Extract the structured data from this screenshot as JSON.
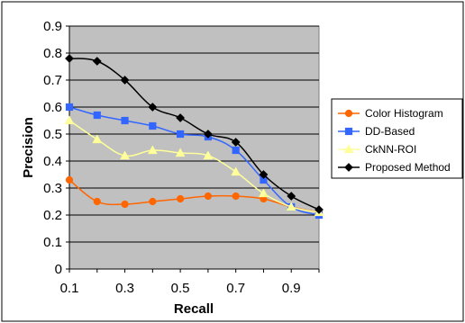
{
  "chart_data": {
    "type": "line",
    "title": "",
    "xlabel": "Recall",
    "ylabel": "Precision",
    "xlim": [
      0.1,
      1.0
    ],
    "ylim": [
      0,
      0.9
    ],
    "x_ticks": [
      "0.1",
      "0.3",
      "0.5",
      "0.7",
      "0.9"
    ],
    "y_ticks": [
      "0",
      "0.1",
      "0.2",
      "0.3",
      "0.4",
      "0.5",
      "0.6",
      "0.7",
      "0.8",
      "0.9"
    ],
    "grid": true,
    "plot_background": "#c0c0c0",
    "legend_position": "right",
    "x": [
      0.1,
      0.2,
      0.3,
      0.4,
      0.5,
      0.6,
      0.7,
      0.8,
      0.9,
      1.0
    ],
    "series": [
      {
        "name": "Color Histogram",
        "color": "#ff6600",
        "marker": "circle",
        "values": [
          0.33,
          0.25,
          0.24,
          0.25,
          0.26,
          0.27,
          0.27,
          0.26,
          0.23,
          0.21
        ]
      },
      {
        "name": "DD-Based",
        "color": "#3366ff",
        "marker": "square",
        "values": [
          0.6,
          0.57,
          0.55,
          0.53,
          0.5,
          0.49,
          0.44,
          0.33,
          0.23,
          0.2
        ]
      },
      {
        "name": "CkNN-ROI",
        "color": "#ffff99",
        "marker": "triangle",
        "values": [
          0.55,
          0.48,
          0.42,
          0.44,
          0.43,
          0.42,
          0.36,
          0.28,
          0.23,
          0.21
        ]
      },
      {
        "name": "Proposed Method",
        "color": "#000000",
        "marker": "diamond",
        "values": [
          0.78,
          0.77,
          0.7,
          0.6,
          0.56,
          0.5,
          0.47,
          0.35,
          0.27,
          0.22
        ]
      }
    ]
  }
}
